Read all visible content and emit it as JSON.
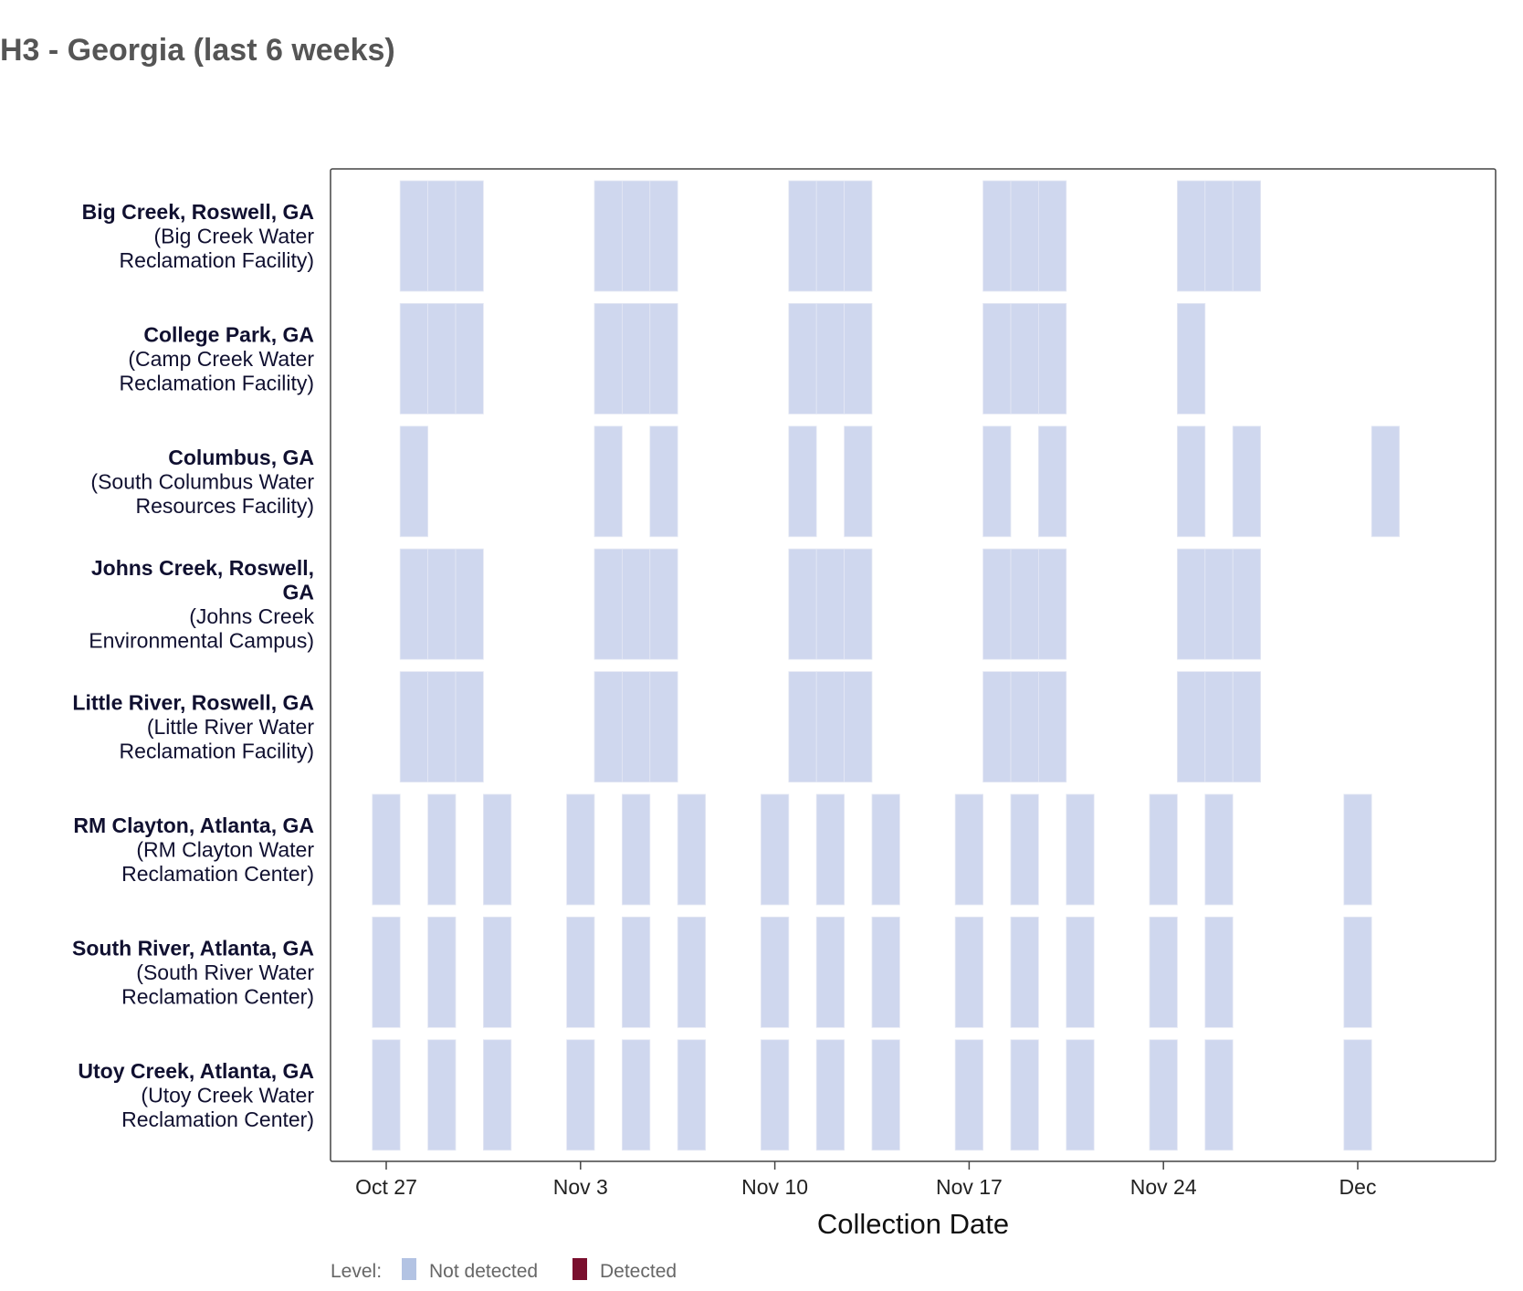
{
  "page": {
    "title": "H3 - Georgia (last 6 weeks)"
  },
  "chart_data": {
    "type": "heatmap",
    "title": "H3 - Georgia (last 6 weeks)",
    "xlabel": "Collection Date",
    "ylabel": "",
    "x_ticks": [
      {
        "date": "2025-10-27",
        "label": "Oct 27"
      },
      {
        "date": "2025-11-03",
        "label": "Nov 3"
      },
      {
        "date": "2025-11-10",
        "label": "Nov 10"
      },
      {
        "date": "2025-11-17",
        "label": "Nov 17"
      },
      {
        "date": "2025-11-24",
        "label": "Nov 24"
      },
      {
        "date": "2025-12-01",
        "label": "Dec"
      }
    ],
    "xlim": [
      "2025-10-25",
      "2025-12-06"
    ],
    "legend": {
      "title": "Level:",
      "position": "bottom-left",
      "items": [
        {
          "label": "Not detected",
          "color": "#b3c3e3"
        },
        {
          "label": "Detected",
          "color": "#7a0f2e"
        }
      ]
    },
    "cell_color_not_detected": "#cfd7ee",
    "sites": [
      {
        "name": "Big Creek, Roswell, GA",
        "facility": [
          "(Big Creek Water",
          "Reclamation Facility)"
        ],
        "samples": [
          {
            "date": "2025-10-28",
            "level": "Not detected"
          },
          {
            "date": "2025-10-29",
            "level": "Not detected"
          },
          {
            "date": "2025-10-30",
            "level": "Not detected"
          },
          {
            "date": "2025-11-04",
            "level": "Not detected"
          },
          {
            "date": "2025-11-05",
            "level": "Not detected"
          },
          {
            "date": "2025-11-06",
            "level": "Not detected"
          },
          {
            "date": "2025-11-11",
            "level": "Not detected"
          },
          {
            "date": "2025-11-12",
            "level": "Not detected"
          },
          {
            "date": "2025-11-13",
            "level": "Not detected"
          },
          {
            "date": "2025-11-18",
            "level": "Not detected"
          },
          {
            "date": "2025-11-19",
            "level": "Not detected"
          },
          {
            "date": "2025-11-20",
            "level": "Not detected"
          },
          {
            "date": "2025-11-25",
            "level": "Not detected"
          },
          {
            "date": "2025-11-26",
            "level": "Not detected"
          },
          {
            "date": "2025-11-27",
            "level": "Not detected"
          }
        ]
      },
      {
        "name": "College Park, GA",
        "facility": [
          "(Camp Creek Water",
          "Reclamation Facility)"
        ],
        "samples": [
          {
            "date": "2025-10-28",
            "level": "Not detected"
          },
          {
            "date": "2025-10-29",
            "level": "Not detected"
          },
          {
            "date": "2025-10-30",
            "level": "Not detected"
          },
          {
            "date": "2025-11-04",
            "level": "Not detected"
          },
          {
            "date": "2025-11-05",
            "level": "Not detected"
          },
          {
            "date": "2025-11-06",
            "level": "Not detected"
          },
          {
            "date": "2025-11-11",
            "level": "Not detected"
          },
          {
            "date": "2025-11-12",
            "level": "Not detected"
          },
          {
            "date": "2025-11-13",
            "level": "Not detected"
          },
          {
            "date": "2025-11-18",
            "level": "Not detected"
          },
          {
            "date": "2025-11-19",
            "level": "Not detected"
          },
          {
            "date": "2025-11-20",
            "level": "Not detected"
          },
          {
            "date": "2025-11-25",
            "level": "Not detected"
          }
        ]
      },
      {
        "name": "Columbus, GA",
        "facility": [
          "(South Columbus Water",
          "Resources Facility)"
        ],
        "samples": [
          {
            "date": "2025-10-28",
            "level": "Not detected"
          },
          {
            "date": "2025-11-04",
            "level": "Not detected"
          },
          {
            "date": "2025-11-06",
            "level": "Not detected"
          },
          {
            "date": "2025-11-11",
            "level": "Not detected"
          },
          {
            "date": "2025-11-13",
            "level": "Not detected"
          },
          {
            "date": "2025-11-18",
            "level": "Not detected"
          },
          {
            "date": "2025-11-20",
            "level": "Not detected"
          },
          {
            "date": "2025-11-25",
            "level": "Not detected"
          },
          {
            "date": "2025-11-27",
            "level": "Not detected"
          },
          {
            "date": "2025-12-02",
            "level": "Not detected"
          }
        ]
      },
      {
        "name": "Johns Creek, Roswell,",
        "name_line2": "GA",
        "facility": [
          "(Johns Creek",
          "Environmental Campus)"
        ],
        "samples": [
          {
            "date": "2025-10-28",
            "level": "Not detected"
          },
          {
            "date": "2025-10-29",
            "level": "Not detected"
          },
          {
            "date": "2025-10-30",
            "level": "Not detected"
          },
          {
            "date": "2025-11-04",
            "level": "Not detected"
          },
          {
            "date": "2025-11-05",
            "level": "Not detected"
          },
          {
            "date": "2025-11-06",
            "level": "Not detected"
          },
          {
            "date": "2025-11-11",
            "level": "Not detected"
          },
          {
            "date": "2025-11-12",
            "level": "Not detected"
          },
          {
            "date": "2025-11-13",
            "level": "Not detected"
          },
          {
            "date": "2025-11-18",
            "level": "Not detected"
          },
          {
            "date": "2025-11-19",
            "level": "Not detected"
          },
          {
            "date": "2025-11-20",
            "level": "Not detected"
          },
          {
            "date": "2025-11-25",
            "level": "Not detected"
          },
          {
            "date": "2025-11-26",
            "level": "Not detected"
          },
          {
            "date": "2025-11-27",
            "level": "Not detected"
          }
        ]
      },
      {
        "name": "Little River, Roswell, GA",
        "facility": [
          "(Little River Water",
          "Reclamation Facility)"
        ],
        "samples": [
          {
            "date": "2025-10-28",
            "level": "Not detected"
          },
          {
            "date": "2025-10-29",
            "level": "Not detected"
          },
          {
            "date": "2025-10-30",
            "level": "Not detected"
          },
          {
            "date": "2025-11-04",
            "level": "Not detected"
          },
          {
            "date": "2025-11-05",
            "level": "Not detected"
          },
          {
            "date": "2025-11-06",
            "level": "Not detected"
          },
          {
            "date": "2025-11-11",
            "level": "Not detected"
          },
          {
            "date": "2025-11-12",
            "level": "Not detected"
          },
          {
            "date": "2025-11-13",
            "level": "Not detected"
          },
          {
            "date": "2025-11-18",
            "level": "Not detected"
          },
          {
            "date": "2025-11-19",
            "level": "Not detected"
          },
          {
            "date": "2025-11-20",
            "level": "Not detected"
          },
          {
            "date": "2025-11-25",
            "level": "Not detected"
          },
          {
            "date": "2025-11-26",
            "level": "Not detected"
          },
          {
            "date": "2025-11-27",
            "level": "Not detected"
          }
        ]
      },
      {
        "name": "RM Clayton, Atlanta, GA",
        "facility": [
          "(RM Clayton Water",
          "Reclamation Center)"
        ],
        "samples": [
          {
            "date": "2025-10-27",
            "level": "Not detected"
          },
          {
            "date": "2025-10-29",
            "level": "Not detected"
          },
          {
            "date": "2025-10-31",
            "level": "Not detected"
          },
          {
            "date": "2025-11-03",
            "level": "Not detected"
          },
          {
            "date": "2025-11-05",
            "level": "Not detected"
          },
          {
            "date": "2025-11-07",
            "level": "Not detected"
          },
          {
            "date": "2025-11-10",
            "level": "Not detected"
          },
          {
            "date": "2025-11-12",
            "level": "Not detected"
          },
          {
            "date": "2025-11-14",
            "level": "Not detected"
          },
          {
            "date": "2025-11-17",
            "level": "Not detected"
          },
          {
            "date": "2025-11-19",
            "level": "Not detected"
          },
          {
            "date": "2025-11-21",
            "level": "Not detected"
          },
          {
            "date": "2025-11-24",
            "level": "Not detected"
          },
          {
            "date": "2025-11-26",
            "level": "Not detected"
          },
          {
            "date": "2025-12-01",
            "level": "Not detected"
          }
        ]
      },
      {
        "name": "South River, Atlanta, GA",
        "facility": [
          "(South River Water",
          "Reclamation Center)"
        ],
        "samples": [
          {
            "date": "2025-10-27",
            "level": "Not detected"
          },
          {
            "date": "2025-10-29",
            "level": "Not detected"
          },
          {
            "date": "2025-10-31",
            "level": "Not detected"
          },
          {
            "date": "2025-11-03",
            "level": "Not detected"
          },
          {
            "date": "2025-11-05",
            "level": "Not detected"
          },
          {
            "date": "2025-11-07",
            "level": "Not detected"
          },
          {
            "date": "2025-11-10",
            "level": "Not detected"
          },
          {
            "date": "2025-11-12",
            "level": "Not detected"
          },
          {
            "date": "2025-11-14",
            "level": "Not detected"
          },
          {
            "date": "2025-11-17",
            "level": "Not detected"
          },
          {
            "date": "2025-11-19",
            "level": "Not detected"
          },
          {
            "date": "2025-11-21",
            "level": "Not detected"
          },
          {
            "date": "2025-11-24",
            "level": "Not detected"
          },
          {
            "date": "2025-11-26",
            "level": "Not detected"
          },
          {
            "date": "2025-12-01",
            "level": "Not detected"
          }
        ]
      },
      {
        "name": "Utoy Creek, Atlanta, GA",
        "facility": [
          "(Utoy Creek Water",
          "Reclamation Center)"
        ],
        "samples": [
          {
            "date": "2025-10-27",
            "level": "Not detected"
          },
          {
            "date": "2025-10-29",
            "level": "Not detected"
          },
          {
            "date": "2025-10-31",
            "level": "Not detected"
          },
          {
            "date": "2025-11-03",
            "level": "Not detected"
          },
          {
            "date": "2025-11-05",
            "level": "Not detected"
          },
          {
            "date": "2025-11-07",
            "level": "Not detected"
          },
          {
            "date": "2025-11-10",
            "level": "Not detected"
          },
          {
            "date": "2025-11-12",
            "level": "Not detected"
          },
          {
            "date": "2025-11-14",
            "level": "Not detected"
          },
          {
            "date": "2025-11-17",
            "level": "Not detected"
          },
          {
            "date": "2025-11-19",
            "level": "Not detected"
          },
          {
            "date": "2025-11-21",
            "level": "Not detected"
          },
          {
            "date": "2025-11-24",
            "level": "Not detected"
          },
          {
            "date": "2025-11-26",
            "level": "Not detected"
          },
          {
            "date": "2025-12-01",
            "level": "Not detected"
          }
        ]
      }
    ]
  }
}
